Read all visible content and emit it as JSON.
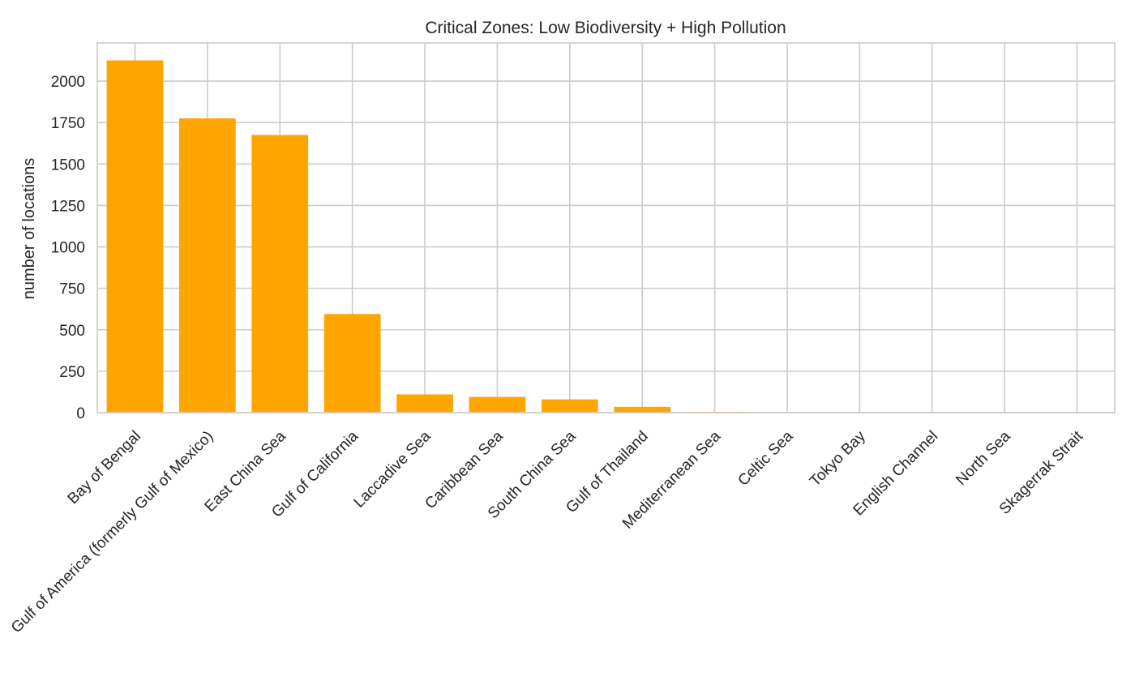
{
  "chart_data": {
    "type": "bar",
    "title": "Critical Zones: Low Biodiversity + High Pollution",
    "xlabel": "",
    "ylabel": "number of locations",
    "categories": [
      "Bay of Bengal",
      "Gulf of America (formerly Gulf of Mexico)",
      "East China Sea",
      "Gulf of California",
      "Laccadive Sea",
      "Caribbean Sea",
      "South China Sea",
      "Gulf of Thailand",
      "Mediterranean Sea",
      "Celtic Sea",
      "Tokyo Bay",
      "English Channel",
      "North Sea",
      "Skagerrak Strait"
    ],
    "values": [
      2125,
      1775,
      1675,
      595,
      110,
      95,
      80,
      35,
      5,
      3,
      2,
      2,
      1,
      1
    ],
    "ylim": [
      0,
      2230
    ],
    "yticks": [
      0,
      250,
      500,
      750,
      1000,
      1250,
      1500,
      1750,
      2000
    ],
    "grid": true,
    "legend": "none",
    "bar_color": "#ffa500"
  }
}
